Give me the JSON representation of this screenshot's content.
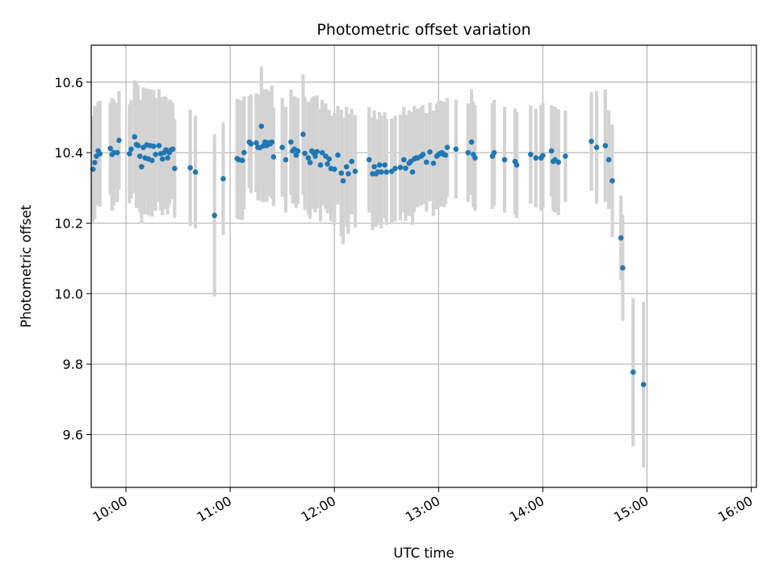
{
  "chart_data": {
    "type": "scatter",
    "title": "Photometric offset variation",
    "xlabel": "UTC time",
    "ylabel": "Photometric offset",
    "xlim": [
      "09:40",
      "16:03"
    ],
    "ylim": [
      9.45,
      10.705
    ],
    "grid": true,
    "x_ticks": [
      "10:00",
      "11:00",
      "12:00",
      "13:00",
      "14:00",
      "15:00",
      "16:00"
    ],
    "y_ticks": [
      "9.6",
      "9.8",
      "10.0",
      "10.2",
      "10.4",
      "10.6"
    ],
    "colors": {
      "point": "#1f77b4",
      "errorbar": "#d3d3d3",
      "grid": "#b0b0b0",
      "axes": "#000000"
    },
    "points": [
      {
        "t": "09:41",
        "y": 10.353,
        "err": 0.15
      },
      {
        "t": "09:42",
        "y": 10.372,
        "err": 0.16
      },
      {
        "t": "09:43",
        "y": 10.39,
        "err": 0.14
      },
      {
        "t": "09:44",
        "y": 10.405,
        "err": 0.14
      },
      {
        "t": "09:45",
        "y": 10.397,
        "err": 0.15
      },
      {
        "t": "09:51",
        "y": 10.412,
        "err": 0.13
      },
      {
        "t": "09:52",
        "y": 10.395,
        "err": 0.16
      },
      {
        "t": "09:53",
        "y": 10.4,
        "err": 0.15
      },
      {
        "t": "09:55",
        "y": 10.4,
        "err": 0.14
      },
      {
        "t": "09:56",
        "y": 10.435,
        "err": 0.14
      },
      {
        "t": "10:02",
        "y": 10.397,
        "err": 0.14
      },
      {
        "t": "10:03",
        "y": 10.41,
        "err": 0.14
      },
      {
        "t": "10:05",
        "y": 10.445,
        "err": 0.16
      },
      {
        "t": "10:06",
        "y": 10.423,
        "err": 0.18
      },
      {
        "t": "10:07",
        "y": 10.42,
        "err": 0.17
      },
      {
        "t": "10:08",
        "y": 10.39,
        "err": 0.16
      },
      {
        "t": "10:09",
        "y": 10.36,
        "err": 0.16
      },
      {
        "t": "10:10",
        "y": 10.415,
        "err": 0.17
      },
      {
        "t": "10:11",
        "y": 10.385,
        "err": 0.16
      },
      {
        "t": "10:12",
        "y": 10.422,
        "err": 0.16
      },
      {
        "t": "10:13",
        "y": 10.382,
        "err": 0.16
      },
      {
        "t": "10:14",
        "y": 10.42,
        "err": 0.16
      },
      {
        "t": "10:15",
        "y": 10.378,
        "err": 0.16
      },
      {
        "t": "10:16",
        "y": 10.418,
        "err": 0.16
      },
      {
        "t": "10:17",
        "y": 10.395,
        "err": 0.16
      },
      {
        "t": "10:19",
        "y": 10.42,
        "err": 0.16
      },
      {
        "t": "10:20",
        "y": 10.397,
        "err": 0.16
      },
      {
        "t": "10:21",
        "y": 10.382,
        "err": 0.16
      },
      {
        "t": "10:22",
        "y": 10.4,
        "err": 0.16
      },
      {
        "t": "10:23",
        "y": 10.408,
        "err": 0.15
      },
      {
        "t": "10:24",
        "y": 10.385,
        "err": 0.16
      },
      {
        "t": "10:25",
        "y": 10.4,
        "err": 0.15
      },
      {
        "t": "10:26",
        "y": 10.408,
        "err": 0.14
      },
      {
        "t": "10:27",
        "y": 10.41,
        "err": 0.13
      },
      {
        "t": "10:28",
        "y": 10.355,
        "err": 0.14
      },
      {
        "t": "10:37",
        "y": 10.357,
        "err": 0.165
      },
      {
        "t": "10:40",
        "y": 10.345,
        "err": 0.16
      },
      {
        "t": "10:51",
        "y": 10.222,
        "err": 0.23
      },
      {
        "t": "10:56",
        "y": 10.326,
        "err": 0.16
      },
      {
        "t": "11:04",
        "y": 10.383,
        "err": 0.17
      },
      {
        "t": "11:05",
        "y": 10.38,
        "err": 0.17
      },
      {
        "t": "11:07",
        "y": 10.378,
        "err": 0.17
      },
      {
        "t": "11:08",
        "y": 10.4,
        "err": 0.16
      },
      {
        "t": "11:11",
        "y": 10.43,
        "err": 0.13
      },
      {
        "t": "11:12",
        "y": 10.425,
        "err": 0.14
      },
      {
        "t": "11:15",
        "y": 10.428,
        "err": 0.14
      },
      {
        "t": "11:16",
        "y": 10.415,
        "err": 0.15
      },
      {
        "t": "11:17",
        "y": 10.414,
        "err": 0.15
      },
      {
        "t": "11:18",
        "y": 10.475,
        "err": 0.17
      },
      {
        "t": "11:19",
        "y": 10.419,
        "err": 0.16
      },
      {
        "t": "11:20",
        "y": 10.43,
        "err": 0.15
      },
      {
        "t": "11:21",
        "y": 10.42,
        "err": 0.16
      },
      {
        "t": "11:22",
        "y": 10.428,
        "err": 0.14
      },
      {
        "t": "11:23",
        "y": 10.425,
        "err": 0.15
      },
      {
        "t": "11:24",
        "y": 10.43,
        "err": 0.16
      },
      {
        "t": "11:25",
        "y": 10.388,
        "err": 0.14
      },
      {
        "t": "11:30",
        "y": 10.415,
        "err": 0.14
      },
      {
        "t": "11:32",
        "y": 10.38,
        "err": 0.15
      },
      {
        "t": "11:35",
        "y": 10.43,
        "err": 0.15
      },
      {
        "t": "11:36",
        "y": 10.405,
        "err": 0.15
      },
      {
        "t": "11:37",
        "y": 10.41,
        "err": 0.15
      },
      {
        "t": "11:38",
        "y": 10.393,
        "err": 0.15
      },
      {
        "t": "11:39",
        "y": 10.405,
        "err": 0.15
      },
      {
        "t": "11:42",
        "y": 10.452,
        "err": 0.17
      },
      {
        "t": "11:43",
        "y": 10.398,
        "err": 0.16
      },
      {
        "t": "11:45",
        "y": 10.385,
        "err": 0.16
      },
      {
        "t": "11:46",
        "y": 10.372,
        "err": 0.16
      },
      {
        "t": "11:47",
        "y": 10.405,
        "err": 0.15
      },
      {
        "t": "11:48",
        "y": 10.4,
        "err": 0.16
      },
      {
        "t": "11:49",
        "y": 10.39,
        "err": 0.16
      },
      {
        "t": "11:50",
        "y": 10.403,
        "err": 0.16
      },
      {
        "t": "11:52",
        "y": 10.365,
        "err": 0.16
      },
      {
        "t": "11:53",
        "y": 10.4,
        "err": 0.15
      },
      {
        "t": "11:55",
        "y": 10.39,
        "err": 0.15
      },
      {
        "t": "11:56",
        "y": 10.368,
        "err": 0.14
      },
      {
        "t": "11:57",
        "y": 10.382,
        "err": 0.14
      },
      {
        "t": "11:58",
        "y": 10.355,
        "err": 0.15
      },
      {
        "t": "12:00",
        "y": 10.353,
        "err": 0.16
      },
      {
        "t": "12:02",
        "y": 10.393,
        "err": 0.14
      },
      {
        "t": "12:04",
        "y": 10.342,
        "err": 0.18
      },
      {
        "t": "12:05",
        "y": 10.32,
        "err": 0.18
      },
      {
        "t": "12:07",
        "y": 10.36,
        "err": 0.17
      },
      {
        "t": "12:08",
        "y": 10.34,
        "err": 0.17
      },
      {
        "t": "12:10",
        "y": 10.375,
        "err": 0.15
      },
      {
        "t": "12:12",
        "y": 10.347,
        "err": 0.16
      },
      {
        "t": "12:20",
        "y": 10.38,
        "err": 0.15
      },
      {
        "t": "12:22",
        "y": 10.34,
        "err": 0.16
      },
      {
        "t": "12:23",
        "y": 10.36,
        "err": 0.16
      },
      {
        "t": "12:24",
        "y": 10.34,
        "err": 0.15
      },
      {
        "t": "12:25",
        "y": 10.345,
        "err": 0.15
      },
      {
        "t": "12:26",
        "y": 10.365,
        "err": 0.15
      },
      {
        "t": "12:27",
        "y": 10.345,
        "err": 0.16
      },
      {
        "t": "12:29",
        "y": 10.365,
        "err": 0.15
      },
      {
        "t": "12:30",
        "y": 10.345,
        "err": 0.15
      },
      {
        "t": "12:33",
        "y": 10.347,
        "err": 0.15
      },
      {
        "t": "12:35",
        "y": 10.355,
        "err": 0.15
      },
      {
        "t": "12:38",
        "y": 10.358,
        "err": 0.15
      },
      {
        "t": "12:40",
        "y": 10.38,
        "err": 0.15
      },
      {
        "t": "12:41",
        "y": 10.356,
        "err": 0.15
      },
      {
        "t": "12:43",
        "y": 10.37,
        "err": 0.15
      },
      {
        "t": "12:44",
        "y": 10.375,
        "err": 0.14
      },
      {
        "t": "12:45",
        "y": 10.345,
        "err": 0.15
      },
      {
        "t": "12:46",
        "y": 10.382,
        "err": 0.15
      },
      {
        "t": "12:47",
        "y": 10.385,
        "err": 0.14
      },
      {
        "t": "12:48",
        "y": 10.385,
        "err": 0.14
      },
      {
        "t": "12:50",
        "y": 10.39,
        "err": 0.14
      },
      {
        "t": "12:51",
        "y": 10.395,
        "err": 0.14
      },
      {
        "t": "12:53",
        "y": 10.373,
        "err": 0.14
      },
      {
        "t": "12:55",
        "y": 10.402,
        "err": 0.14
      },
      {
        "t": "12:57",
        "y": 10.37,
        "err": 0.15
      },
      {
        "t": "12:59",
        "y": 10.39,
        "err": 0.15
      },
      {
        "t": "13:00",
        "y": 10.395,
        "err": 0.15
      },
      {
        "t": "13:01",
        "y": 10.398,
        "err": 0.15
      },
      {
        "t": "13:02",
        "y": 10.4,
        "err": 0.14
      },
      {
        "t": "13:03",
        "y": 10.395,
        "err": 0.15
      },
      {
        "t": "13:04",
        "y": 10.393,
        "err": 0.14
      },
      {
        "t": "13:05",
        "y": 10.415,
        "err": 0.14
      },
      {
        "t": "13:10",
        "y": 10.41,
        "err": 0.14
      },
      {
        "t": "13:17",
        "y": 10.4,
        "err": 0.14
      },
      {
        "t": "13:19",
        "y": 10.43,
        "err": 0.15
      },
      {
        "t": "13:20",
        "y": 10.395,
        "err": 0.15
      },
      {
        "t": "13:21",
        "y": 10.385,
        "err": 0.15
      },
      {
        "t": "13:31",
        "y": 10.39,
        "err": 0.15
      },
      {
        "t": "13:32",
        "y": 10.4,
        "err": 0.15
      },
      {
        "t": "13:38",
        "y": 10.38,
        "err": 0.15
      },
      {
        "t": "13:44",
        "y": 10.375,
        "err": 0.15
      },
      {
        "t": "13:45",
        "y": 10.365,
        "err": 0.15
      },
      {
        "t": "13:53",
        "y": 10.395,
        "err": 0.14
      },
      {
        "t": "13:56",
        "y": 10.385,
        "err": 0.14
      },
      {
        "t": "13:59",
        "y": 10.385,
        "err": 0.15
      },
      {
        "t": "14:00",
        "y": 10.392,
        "err": 0.15
      },
      {
        "t": "14:05",
        "y": 10.405,
        "err": 0.13
      },
      {
        "t": "14:06",
        "y": 10.375,
        "err": 0.14
      },
      {
        "t": "14:07",
        "y": 10.38,
        "err": 0.15
      },
      {
        "t": "14:09",
        "y": 10.373,
        "err": 0.15
      },
      {
        "t": "14:13",
        "y": 10.39,
        "err": 0.13
      },
      {
        "t": "14:28",
        "y": 10.432,
        "err": 0.14
      },
      {
        "t": "14:31",
        "y": 10.415,
        "err": 0.16
      },
      {
        "t": "14:36",
        "y": 10.42,
        "err": 0.16
      },
      {
        "t": "14:38",
        "y": 10.38,
        "err": 0.14
      },
      {
        "t": "14:40",
        "y": 10.32,
        "err": 0.16
      },
      {
        "t": "14:45",
        "y": 10.158,
        "err": 0.12
      },
      {
        "t": "14:46",
        "y": 10.073,
        "err": 0.15
      },
      {
        "t": "14:52",
        "y": 9.777,
        "err": 0.21
      },
      {
        "t": "14:58",
        "y": 9.742,
        "err": 0.235
      }
    ]
  }
}
